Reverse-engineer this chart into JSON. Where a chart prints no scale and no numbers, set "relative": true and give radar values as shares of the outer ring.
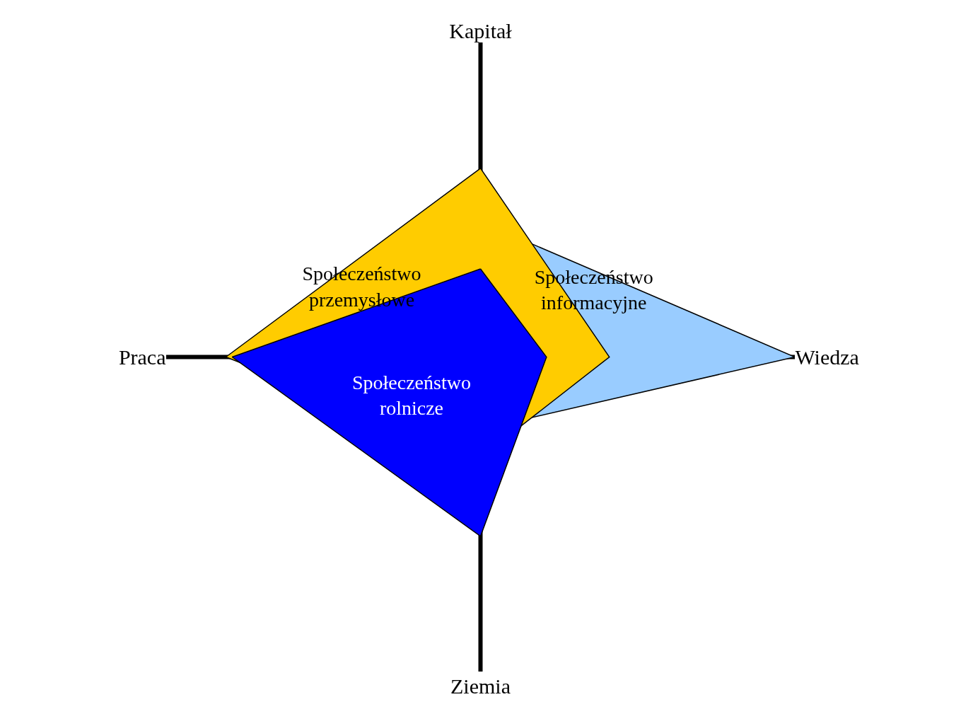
{
  "chart_data": {
    "type": "radar",
    "relative": true,
    "categories": [
      "Kapitał",
      "Wiedza",
      "Ziemia",
      "Praca"
    ],
    "series": [
      {
        "name": "Społeczeństwo informacyjne",
        "color": "#99ccff",
        "values": [
          0.43,
          1.0,
          0.23,
          0.32
        ]
      },
      {
        "name": "Społeczeństwo przemysłowe",
        "color": "#ffcc00",
        "values": [
          0.6,
          0.41,
          0.32,
          0.81
        ]
      },
      {
        "name": "Społeczeństwo rolnicze",
        "color": "#0000ff",
        "values": [
          0.28,
          0.21,
          0.57,
          0.79
        ]
      }
    ]
  }
}
